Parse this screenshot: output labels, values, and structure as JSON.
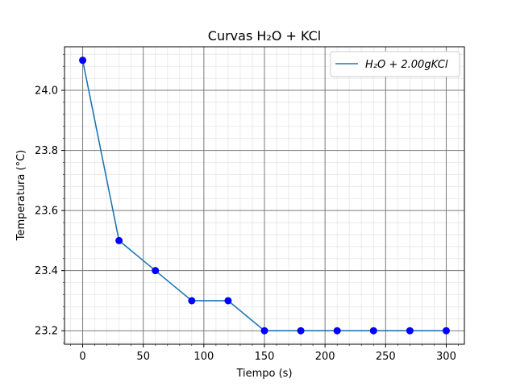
{
  "chart_data": {
    "type": "line",
    "title": "Curvas H₂O + KCl",
    "xlabel": "Tiempo (s)",
    "ylabel": "Temperatura (°C)",
    "xlim": [
      -15,
      315
    ],
    "ylim": [
      23.155,
      24.145
    ],
    "x_ticks": [
      0,
      50,
      100,
      150,
      200,
      250,
      300
    ],
    "y_ticks": [
      23.2,
      23.4,
      23.6,
      23.8,
      24.0
    ],
    "x_tick_labels": [
      "0",
      "50",
      "100",
      "150",
      "200",
      "250",
      "300"
    ],
    "y_tick_labels": [
      "23.2",
      "23.4",
      "23.6",
      "23.8",
      "24.0"
    ],
    "grid": true,
    "minor_grid": true,
    "legend_position": "top-right",
    "series": [
      {
        "name": "H₂O + 2.00gKCl",
        "line_color": "#1f77b4",
        "marker_color": "#0000ff",
        "x": [
          0,
          30,
          60,
          90,
          120,
          150,
          180,
          210,
          240,
          270,
          300
        ],
        "y": [
          24.1,
          23.5,
          23.4,
          23.3,
          23.3,
          23.2,
          23.2,
          23.2,
          23.2,
          23.2,
          23.2
        ]
      }
    ]
  }
}
